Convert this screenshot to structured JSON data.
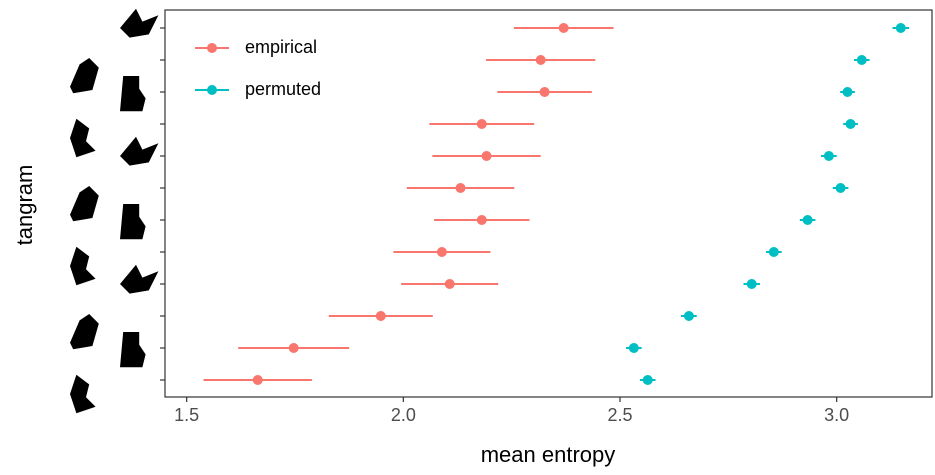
{
  "chart_data": {
    "type": "dot-errorbar",
    "x_label": "mean entropy",
    "y_label": "tangram",
    "categories": [
      null,
      null,
      null,
      null,
      null,
      null,
      null,
      null,
      null,
      null,
      null,
      null
    ],
    "series": [
      {
        "name": "empirical",
        "color": "#F8766D",
        "values": [
          2.37,
          2.317,
          2.326,
          2.181,
          2.192,
          2.132,
          2.181,
          2.089,
          2.107,
          1.948,
          1.747,
          1.664
        ],
        "errors": [
          0.115,
          0.126,
          0.109,
          0.121,
          0.125,
          0.124,
          0.11,
          0.112,
          0.112,
          0.12,
          0.128,
          0.125
        ]
      },
      {
        "name": "permuted",
        "color": "#00BFC4",
        "values": [
          3.148,
          3.058,
          3.025,
          3.032,
          2.982,
          3.009,
          2.933,
          2.855,
          2.804,
          2.659,
          2.532,
          2.564
        ],
        "errors": [
          0.019,
          0.018,
          0.017,
          0.017,
          0.018,
          0.018,
          0.018,
          0.018,
          0.019,
          0.018,
          0.018,
          0.018
        ]
      }
    ],
    "xlim": [
      1.45,
      3.22
    ],
    "xticks": [
      1.5,
      {
        "value": 2,
        "label": "2.0"
      },
      2.5,
      {
        "value": 3,
        "label": "3.0"
      }
    ],
    "legend": "top-left"
  }
}
